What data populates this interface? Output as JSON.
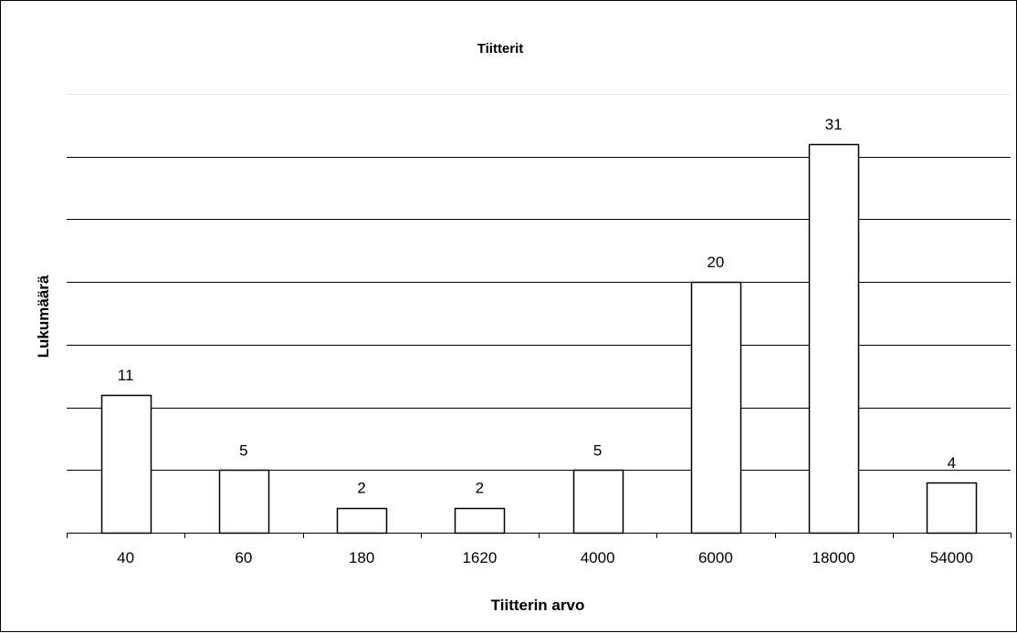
{
  "chart_data": {
    "type": "bar",
    "title": "Tiitterit",
    "xlabel": "Tiitterin arvo",
    "ylabel": "Lukumäärä",
    "categories": [
      "40",
      "60",
      "180",
      "1620",
      "4000",
      "6000",
      "18000",
      "54000"
    ],
    "values": [
      11,
      5,
      2,
      2,
      5,
      20,
      31,
      4
    ],
    "data_labels": [
      "11",
      "5",
      "2",
      "2",
      "5",
      "20",
      "31",
      "4"
    ],
    "ylim": [
      0,
      35
    ],
    "y_gridlines": [
      5,
      10,
      15,
      20,
      25,
      30,
      35
    ],
    "grid": true,
    "legend": "none",
    "colors": {
      "bar_fill": "#ffffff",
      "bar_stroke": "#000000",
      "grid": "#000000"
    }
  }
}
